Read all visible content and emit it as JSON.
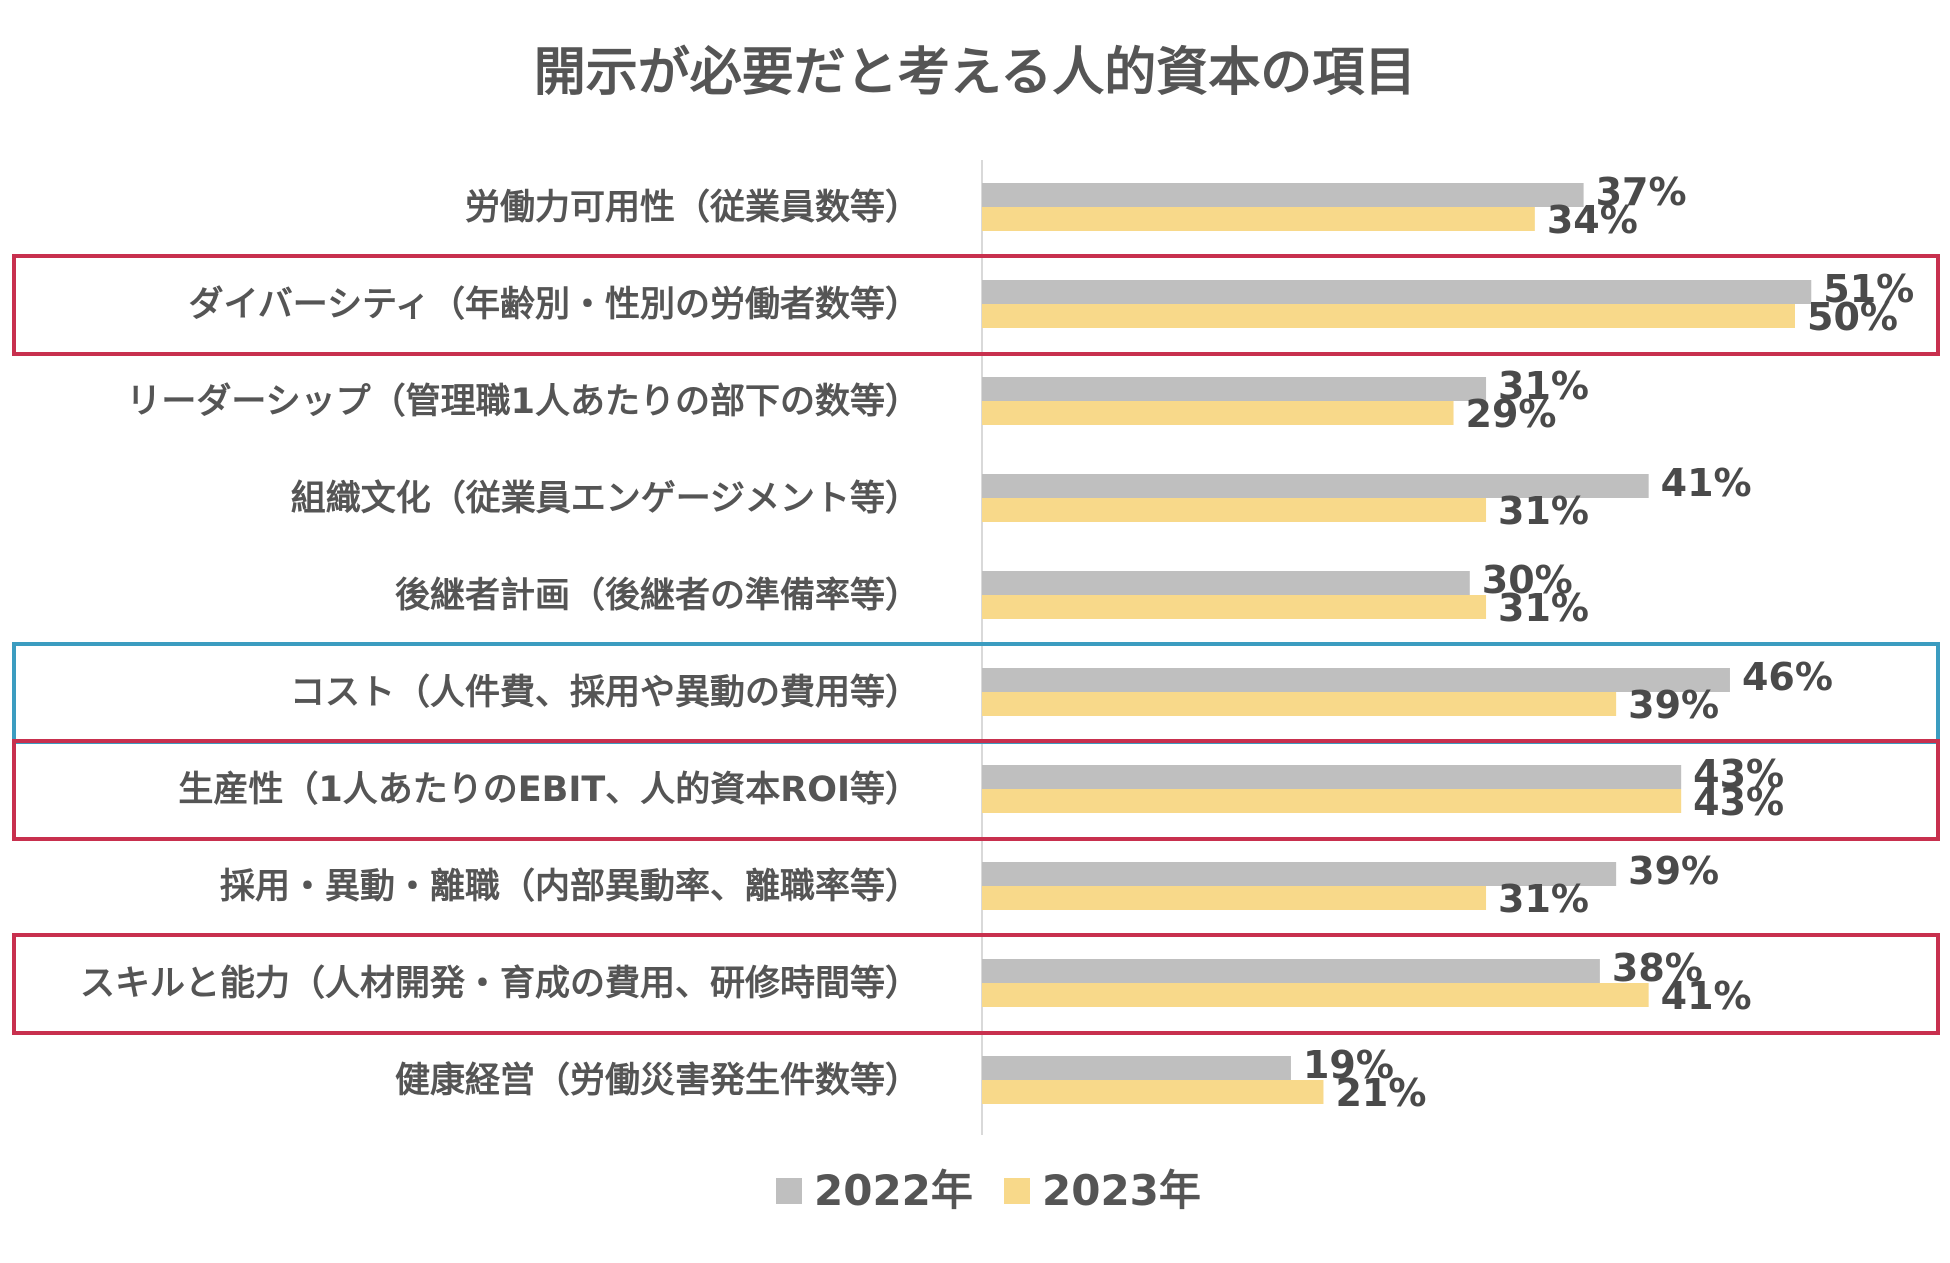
{
  "chart_data": {
    "type": "bar",
    "orientation": "horizontal",
    "title": "開示が必要だと考える人的資本の項目",
    "categories": [
      "労働力可用性（従業員数等）",
      "ダイバーシティ（年齢別・性別の労働者数等）",
      "リーダーシップ（管理職1人あたりの部下の数等）",
      "組織文化（従業員エンゲージメント等）",
      "後継者計画（後継者の準備率等）",
      "コスト（人件費、採用や異動の費用等）",
      "生産性（1人あたりのEBIT、人的資本ROI等）",
      "採用・異動・離職（内部異動率、離職率等）",
      "スキルと能力（人材開発・育成の費用、研修時間等）",
      "健康経営（労働災害発生件数等）"
    ],
    "series": [
      {
        "name": "2022年",
        "color": "#bfbfbf",
        "values": [
          37,
          51,
          31,
          41,
          30,
          46,
          43,
          39,
          38,
          19
        ],
        "labels": [
          "37%",
          "51%",
          "31%",
          "41%",
          "30%",
          "46%",
          "43%",
          "39%",
          "38%",
          "19%"
        ]
      },
      {
        "name": "2023年",
        "color": "#f8d98a",
        "values": [
          34,
          50,
          29,
          31,
          31,
          39,
          43,
          31,
          41,
          21
        ],
        "labels": [
          "34%",
          "50%",
          "29%",
          "31%",
          "31%",
          "39%",
          "43%",
          "31%",
          "41%",
          "21%"
        ]
      }
    ],
    "xlim": [
      0,
      60
    ],
    "legend_position": "bottom",
    "highlights": [
      {
        "category_index": 1,
        "color": "#c8304e"
      },
      {
        "category_index": 5,
        "color": "#3b9cc0"
      },
      {
        "category_index": 6,
        "color": "#c8304e"
      },
      {
        "category_index": 8,
        "color": "#c8304e"
      }
    ]
  }
}
